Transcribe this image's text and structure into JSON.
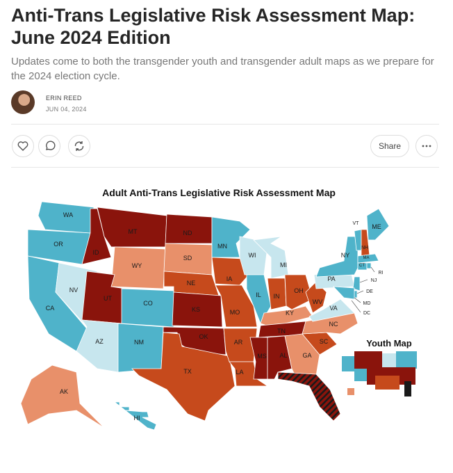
{
  "header": {
    "title": "Anti-Trans Legislative Risk Assessment Map: June 2024 Edition",
    "subtitle": "Updates come to both the transgender youth and transgender adult maps as we prepare for the 2024 election cycle."
  },
  "author": {
    "name": "ERIN REED",
    "date": "JUN 04, 2024"
  },
  "actions": {
    "share": "Share"
  },
  "map": {
    "title": "Adult Anti-Trans Legislative Risk Assessment Map",
    "inset_title": "Youth Map",
    "states": [
      {
        "label": "WA",
        "color": "#4fb3ca"
      },
      {
        "label": "OR",
        "color": "#4fb3ca"
      },
      {
        "label": "CA",
        "color": "#4fb3ca"
      },
      {
        "label": "NV",
        "color": "#c7e6ee"
      },
      {
        "label": "ID",
        "color": "#8a140c"
      },
      {
        "label": "MT",
        "color": "#8a140c"
      },
      {
        "label": "WY",
        "color": "#e8906a"
      },
      {
        "label": "UT",
        "color": "#8a140c"
      },
      {
        "label": "CO",
        "color": "#4fb3ca"
      },
      {
        "label": "AZ",
        "color": "#c7e6ee"
      },
      {
        "label": "NM",
        "color": "#4fb3ca"
      },
      {
        "label": "ND",
        "color": "#8a140c"
      },
      {
        "label": "SD",
        "color": "#e8906a"
      },
      {
        "label": "NE",
        "color": "#c64a1c"
      },
      {
        "label": "KS",
        "color": "#8a140c"
      },
      {
        "label": "OK",
        "color": "#8a140c"
      },
      {
        "label": "TX",
        "color": "#c64a1c"
      },
      {
        "label": "MN",
        "color": "#4fb3ca"
      },
      {
        "label": "IA",
        "color": "#c64a1c"
      },
      {
        "label": "MO",
        "color": "#c64a1c"
      },
      {
        "label": "AR",
        "color": "#c64a1c"
      },
      {
        "label": "LA",
        "color": "#c64a1c"
      },
      {
        "label": "WI",
        "color": "#c7e6ee"
      },
      {
        "label": "IL",
        "color": "#4fb3ca"
      },
      {
        "label": "MI",
        "color": "#c7e6ee"
      },
      {
        "label": "IN",
        "color": "#c64a1c"
      },
      {
        "label": "OH",
        "color": "#c64a1c"
      },
      {
        "label": "KY",
        "color": "#e8906a"
      },
      {
        "label": "TN",
        "color": "#8a140c"
      },
      {
        "label": "MS",
        "color": "#8a140c"
      },
      {
        "label": "AL",
        "color": "#8a140c"
      },
      {
        "label": "GA",
        "color": "#e8906a"
      },
      {
        "label": "SC",
        "color": "#c64a1c"
      },
      {
        "label": "NC",
        "color": "#e8906a"
      },
      {
        "label": "VA",
        "color": "#c7e6ee"
      },
      {
        "label": "WV",
        "color": "#c64a1c"
      },
      {
        "label": "PA",
        "color": "#c7e6ee"
      },
      {
        "label": "NY",
        "color": "#4fb3ca"
      },
      {
        "label": "VT",
        "color": "#4fb3ca"
      },
      {
        "label": "NH",
        "color": "#c64a1c"
      },
      {
        "label": "ME",
        "color": "#4fb3ca"
      },
      {
        "label": "MA",
        "color": "#4fb3ca"
      },
      {
        "label": "CT",
        "color": "#4fb3ca"
      },
      {
        "label": "RI",
        "color": "#4fb3ca"
      },
      {
        "label": "NJ",
        "color": "#4fb3ca"
      },
      {
        "label": "DE",
        "color": "#4fb3ca"
      },
      {
        "label": "MD",
        "color": "#4fb3ca"
      },
      {
        "label": "DC",
        "color": "#4fb3ca"
      },
      {
        "label": "AK",
        "color": "#e8906a"
      },
      {
        "label": "HI",
        "color": "#4fb3ca"
      },
      {
        "label": null,
        "color": "#8a140c",
        "hatched": true
      }
    ]
  }
}
